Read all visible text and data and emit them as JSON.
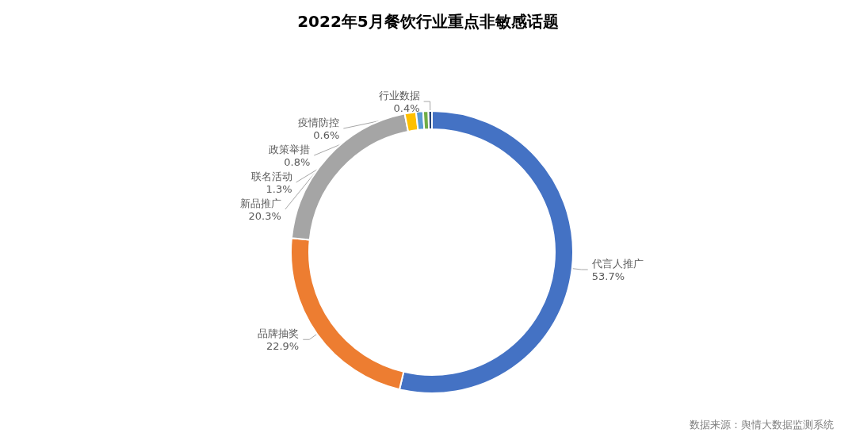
{
  "chart_data": {
    "type": "donut",
    "title": "2022年5月餐饮行业重点非敏感话题",
    "categories": [
      "代言人推广",
      "品牌抽奖",
      "新品推广",
      "联名活动",
      "政策举措",
      "疫情防控",
      "行业数据"
    ],
    "values": [
      53.7,
      22.9,
      20.3,
      1.3,
      0.8,
      0.6,
      0.4
    ],
    "colors": [
      "#4472c4",
      "#ed7d31",
      "#a5a5a5",
      "#ffc000",
      "#5b9bd5",
      "#70ad47",
      "#264478"
    ],
    "value_labels": [
      "53.7%",
      "22.9%",
      "20.3%",
      "1.3%",
      "0.8%",
      "0.6%",
      "0.4%"
    ],
    "annotations": [
      "数据来源：舆情大数据监测系统"
    ],
    "legend": false
  }
}
